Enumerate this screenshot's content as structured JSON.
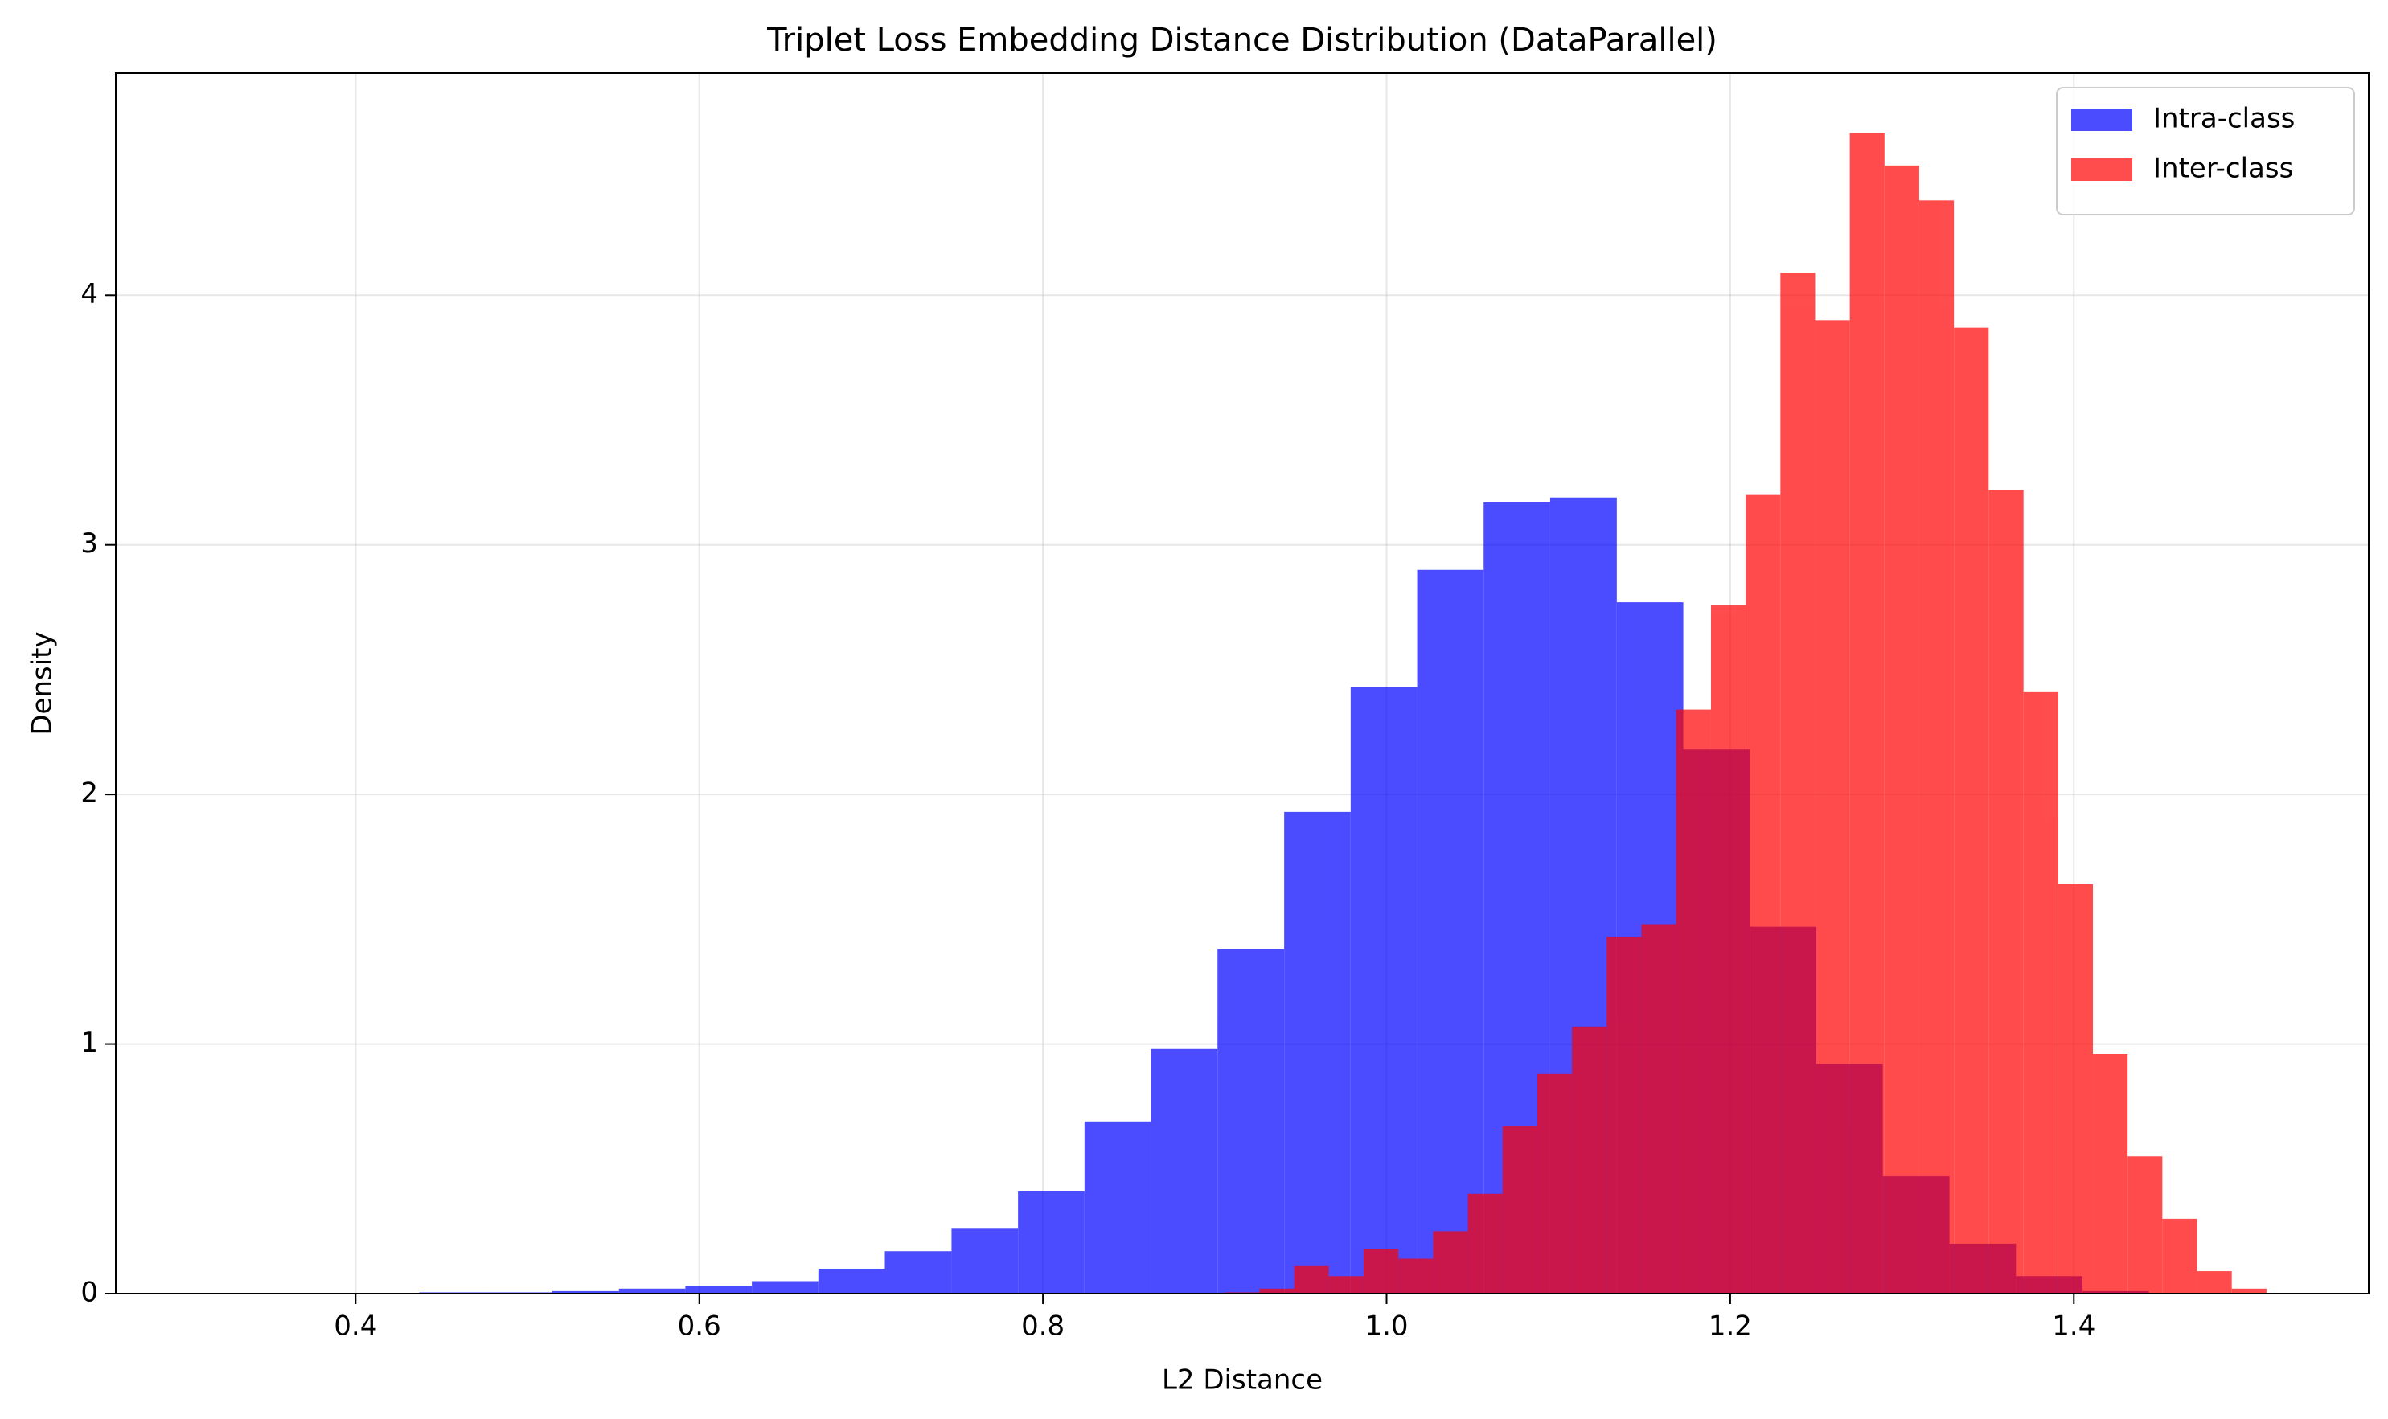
{
  "chart_data": {
    "type": "histogram",
    "title": "Triplet Loss Embedding Distance Distribution (DataParallel)",
    "x_label": "L2 Distance",
    "y_label": "Density",
    "xlim": [
      0.2604,
      1.5716
    ],
    "ylim": [
      0,
      4.89
    ],
    "xticks": [
      0.4,
      0.6,
      0.8,
      {
        "value": 1,
        "label": "1.0"
      },
      1.2,
      1.4
    ],
    "yticks": [
      0,
      1,
      2,
      3,
      4
    ],
    "grid": true,
    "legend": "upper right",
    "alpha": 0.7,
    "series": [
      {
        "name": "Intra-class",
        "color": "blue",
        "bins": [
          0.437,
          0.4757,
          0.5144,
          0.5532,
          0.5919,
          0.6306,
          0.6693,
          0.708,
          0.7468,
          0.7855,
          0.8242,
          0.8629,
          0.9016,
          0.9404,
          0.9791,
          1.0178,
          1.0565,
          1.0952,
          1.134,
          1.1727,
          1.2114,
          1.2501,
          1.2888,
          1.3276,
          1.3663,
          1.405,
          1.4437
        ],
        "values": [
          0.005,
          0.005,
          0.01,
          0.02,
          0.03,
          0.05,
          0.1,
          0.17,
          0.26,
          0.41,
          0.69,
          0.98,
          1.38,
          1.93,
          2.43,
          2.9,
          3.17,
          3.19,
          2.77,
          2.18,
          1.47,
          0.92,
          0.47,
          0.2,
          0.07,
          0.01
        ]
      },
      {
        "name": "Inter-class",
        "color": "red",
        "bins": [
          0.9058,
          0.926,
          0.9462,
          0.9664,
          0.9866,
          1.0069,
          1.0271,
          1.0473,
          1.0675,
          1.0877,
          1.1079,
          1.1281,
          1.1483,
          1.1685,
          1.1888,
          1.209,
          1.2292,
          1.2494,
          1.2696,
          1.2898,
          1.31,
          1.3302,
          1.3504,
          1.3707,
          1.3909,
          1.4111,
          1.4313,
          1.4515,
          1.4717,
          1.4919,
          1.5121
        ],
        "values": [
          0.005,
          0.02,
          0.11,
          0.07,
          0.18,
          0.14,
          0.25,
          0.4,
          0.67,
          0.88,
          1.07,
          1.43,
          1.48,
          2.34,
          2.76,
          3.2,
          4.09,
          3.9,
          4.65,
          4.52,
          4.38,
          3.87,
          3.22,
          2.41,
          1.64,
          0.96,
          0.55,
          0.3,
          0.09,
          0.02
        ]
      }
    ]
  }
}
